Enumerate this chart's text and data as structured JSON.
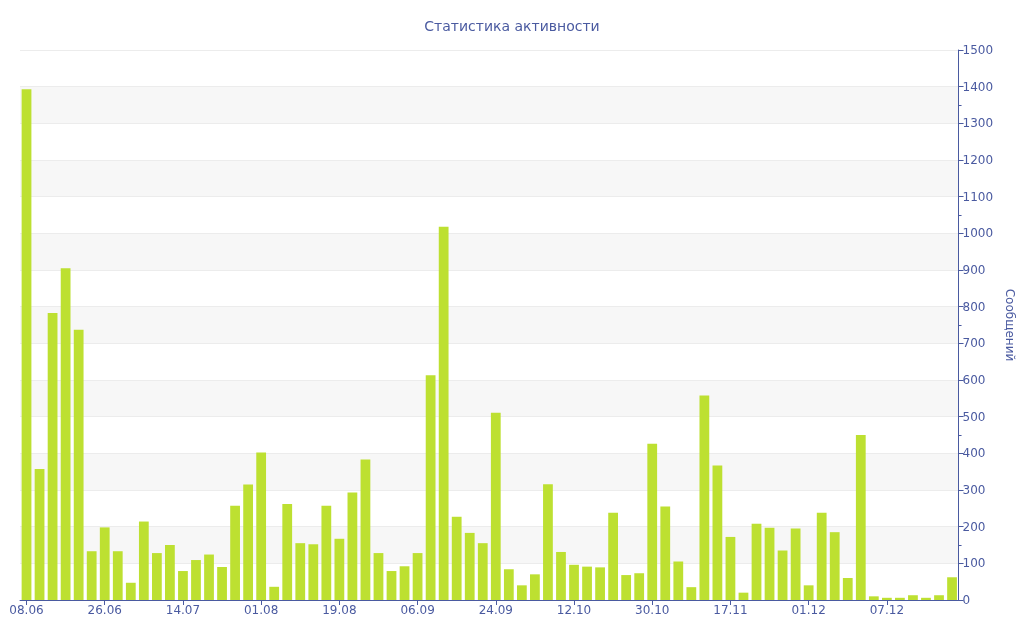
{
  "chart_data": {
    "type": "bar",
    "title": "Статистика активности",
    "ylabel": "Сообщений",
    "categories": [
      "08.06",
      null,
      null,
      null,
      null,
      null,
      "26.06",
      null,
      null,
      null,
      null,
      null,
      "14.07",
      null,
      null,
      null,
      null,
      null,
      "01.08",
      null,
      null,
      null,
      null,
      null,
      "19.08",
      null,
      null,
      null,
      null,
      null,
      "06.09",
      null,
      null,
      null,
      null,
      null,
      "24.09",
      null,
      null,
      null,
      null,
      null,
      "12.10",
      null,
      null,
      null,
      null,
      null,
      "30.10",
      null,
      null,
      null,
      null,
      null,
      "17.11",
      null,
      null,
      null,
      null,
      null,
      "01.12",
      null,
      null,
      null,
      null,
      null,
      "07.12",
      null,
      null,
      null,
      null,
      null
    ],
    "values": [
      1393,
      357,
      783,
      905,
      737,
      133,
      198,
      133,
      47,
      214,
      128,
      150,
      79,
      109,
      124,
      90,
      257,
      315,
      402,
      36,
      262,
      155,
      152,
      257,
      167,
      293,
      383,
      128,
      79,
      92,
      128,
      613,
      1018,
      227,
      183,
      155,
      511,
      84,
      40,
      70,
      316,
      131,
      96,
      91,
      89,
      238,
      68,
      73,
      426,
      255,
      105,
      35,
      558,
      367,
      172,
      20,
      208,
      197,
      135,
      195,
      40,
      238,
      185,
      60,
      450,
      10,
      6,
      6,
      13,
      6,
      13,
      62
    ],
    "color": "#bde031",
    "ylim": [
      0,
      1500
    ],
    "yticks": [
      0,
      100,
      200,
      300,
      400,
      500,
      600,
      700,
      800,
      900,
      1000,
      1100,
      1200,
      1300,
      1400,
      1500
    ],
    "grid": "y"
  }
}
